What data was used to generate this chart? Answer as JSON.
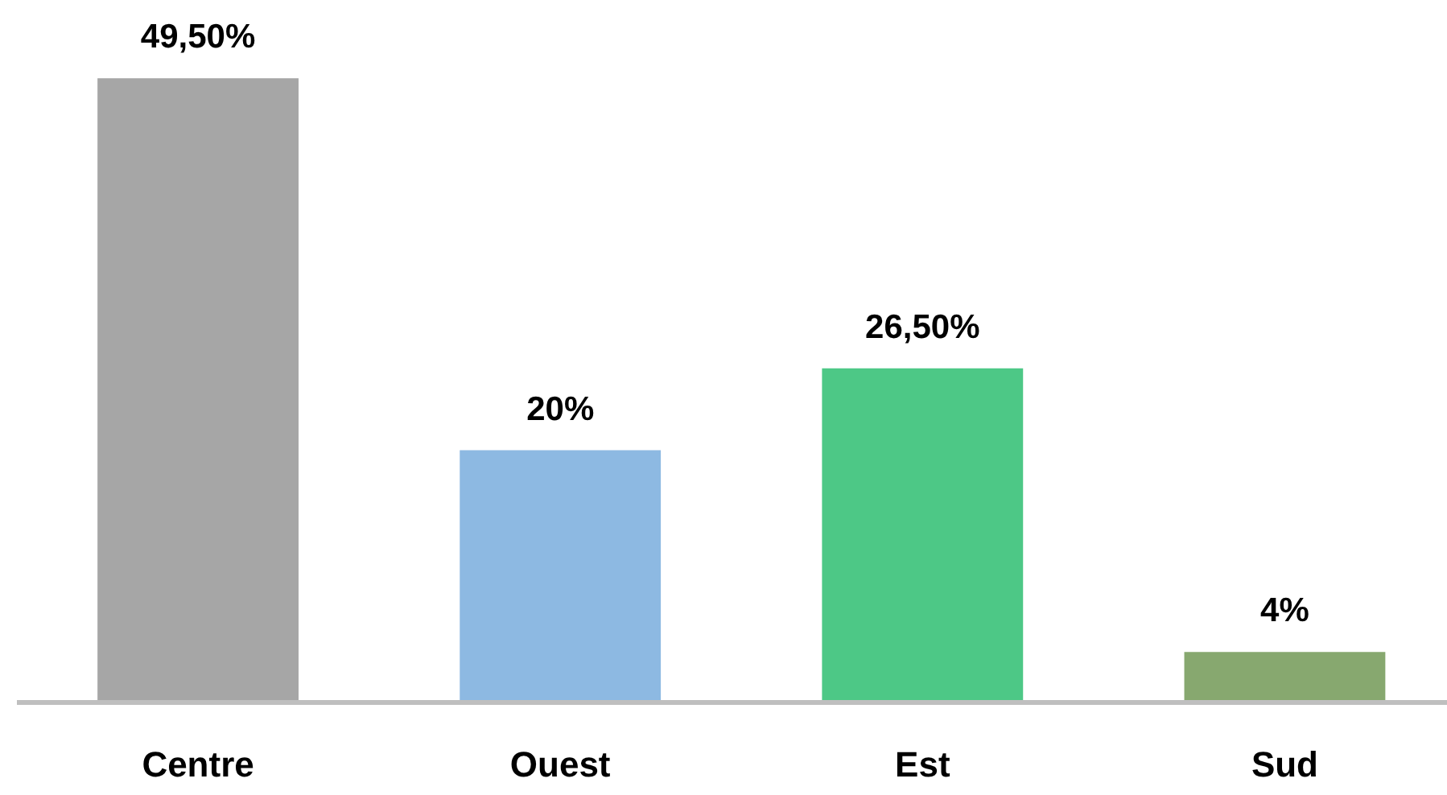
{
  "chart_data": {
    "type": "bar",
    "categories": [
      "Centre",
      "Ouest",
      "Est",
      "Sud"
    ],
    "values": [
      49.5,
      20,
      26.5,
      4
    ],
    "colors": [
      "#a6a6a6",
      "#8db9e2",
      "#4dc886",
      "#87a86f"
    ],
    "value_labels": [
      "49,50%",
      "20%",
      "26,50%",
      "4%"
    ],
    "grid": false,
    "legend": false
  }
}
